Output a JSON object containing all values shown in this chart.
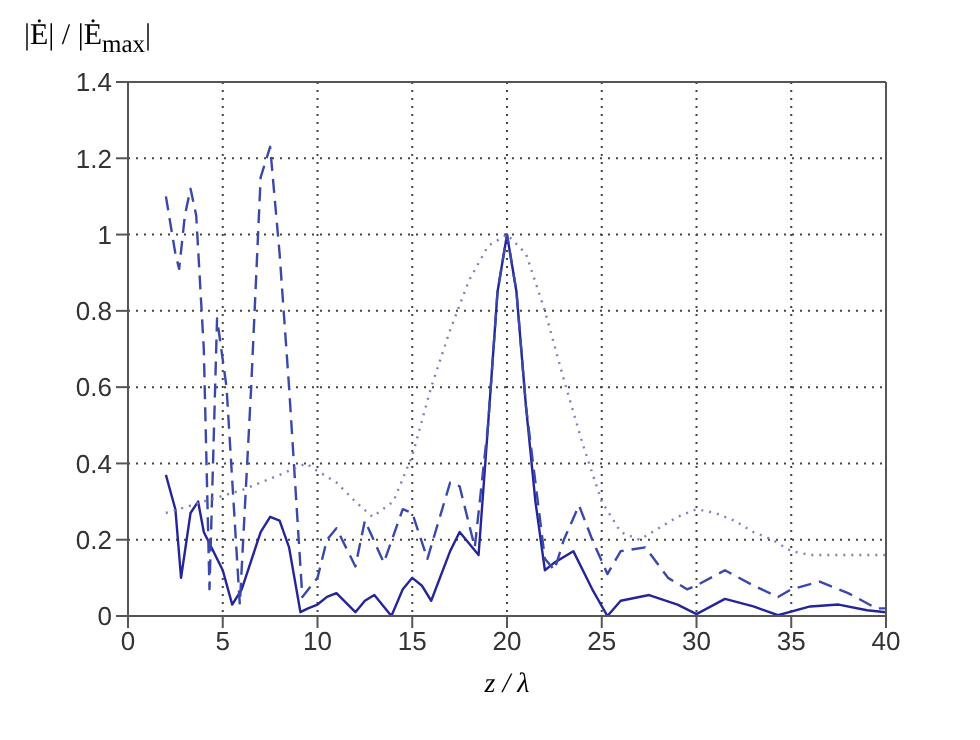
{
  "chart_data": {
    "type": "line",
    "xlabel": "z / λ",
    "ylabel": "|Ė| / |Ė$_{max}$|",
    "xlim": [
      0,
      40
    ],
    "ylim": [
      0,
      1.4
    ],
    "xticks": [
      0,
      5,
      10,
      15,
      20,
      25,
      30,
      35,
      40
    ],
    "yticks": [
      0,
      0.2,
      0.4,
      0.6,
      0.8,
      1,
      1.2,
      1.4
    ],
    "grid": true,
    "series": [
      {
        "color": "#25259a",
        "line_style": "solid",
        "x": [
          2,
          2.5,
          2.8,
          3.3,
          3.7,
          4,
          5,
          5.5,
          6,
          7,
          7.5,
          8,
          8.5,
          9.1,
          9.5,
          10,
          10.5,
          11,
          12,
          12.5,
          13,
          13.9,
          14.5,
          15,
          15.5,
          16,
          17,
          17.5,
          18,
          18.5,
          19,
          19.5,
          20,
          20.5,
          21,
          21.5,
          22,
          22.5,
          23.5,
          24.5,
          25.3,
          26,
          27.5,
          29,
          30,
          31.5,
          33,
          34.3,
          36,
          37.5,
          39,
          40
        ],
        "values": [
          0.37,
          0.28,
          0.1,
          0.27,
          0.3,
          0.22,
          0.12,
          0.03,
          0.07,
          0.22,
          0.26,
          0.25,
          0.18,
          0.01,
          0.02,
          0.03,
          0.05,
          0.06,
          0.01,
          0.04,
          0.055,
          0,
          0.07,
          0.1,
          0.08,
          0.04,
          0.17,
          0.22,
          0.19,
          0.16,
          0.5,
          0.85,
          1,
          0.85,
          0.55,
          0.3,
          0.12,
          0.14,
          0.17,
          0.07,
          0,
          0.04,
          0.055,
          0.03,
          0.005,
          0.045,
          0.025,
          0.002,
          0.025,
          0.03,
          0.015,
          0.01
        ]
      },
      {
        "color": "#3a48a8",
        "line_style": "dashed",
        "x": [
          2,
          2.5,
          2.7,
          3,
          3.3,
          3.6,
          4,
          4.3,
          4.7,
          5.2,
          5.9,
          6.5,
          7,
          7.5,
          8,
          8.5,
          9.2,
          10,
          10.5,
          11,
          12,
          12.5,
          13.5,
          14.5,
          15,
          15.8,
          17,
          17.5,
          18.3,
          19,
          19.5,
          20,
          20.5,
          21,
          22,
          22.5,
          23,
          23.8,
          24.5,
          25.3,
          26,
          27.3,
          28.5,
          29.5,
          30,
          31.5,
          33,
          34.3,
          35,
          36.5,
          38,
          39.5,
          40
        ],
        "values": [
          1.1,
          0.95,
          0.91,
          1.05,
          1.12,
          1.05,
          0.7,
          0.07,
          0.78,
          0.6,
          0.03,
          0.6,
          1.15,
          1.23,
          0.95,
          0.6,
          0.05,
          0.1,
          0.2,
          0.23,
          0.13,
          0.25,
          0.14,
          0.28,
          0.27,
          0.15,
          0.35,
          0.34,
          0.18,
          0.5,
          0.85,
          1,
          0.85,
          0.55,
          0.15,
          0.12,
          0.2,
          0.29,
          0.2,
          0.11,
          0.17,
          0.18,
          0.1,
          0.07,
          0.08,
          0.12,
          0.08,
          0.05,
          0.07,
          0.09,
          0.06,
          0.02,
          0.02
        ]
      },
      {
        "color": "#8080bc",
        "line_style": "dotted",
        "x": [
          2,
          4,
          6,
          8,
          9.4,
          10,
          11,
          12,
          12.9,
          14,
          15,
          16,
          17,
          18,
          19,
          20,
          21,
          22,
          23,
          24,
          25,
          26,
          27,
          28,
          29,
          30,
          31,
          32,
          33,
          34,
          35,
          36,
          37,
          40
        ],
        "values": [
          0.27,
          0.3,
          0.33,
          0.37,
          0.4,
          0.38,
          0.35,
          0.3,
          0.26,
          0.3,
          0.42,
          0.6,
          0.75,
          0.88,
          0.97,
          1,
          0.95,
          0.8,
          0.62,
          0.45,
          0.3,
          0.22,
          0.2,
          0.23,
          0.26,
          0.28,
          0.27,
          0.25,
          0.22,
          0.2,
          0.17,
          0.16,
          0.16,
          0.16
        ]
      }
    ]
  }
}
